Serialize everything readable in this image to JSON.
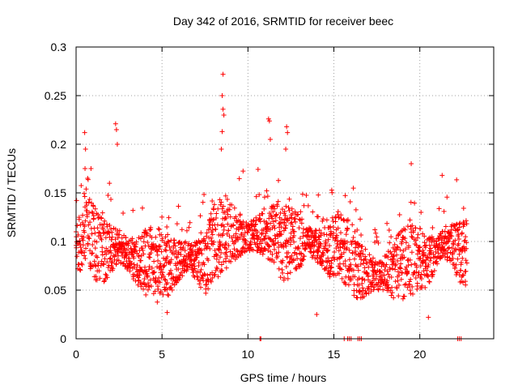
{
  "chart_data": {
    "type": "scatter",
    "title": "Day 342 of 2016, SRMTID for receiver beec",
    "xlabel": "GPS time / hours",
    "ylabel": "SRMTID / TECUs",
    "xlim": [
      0,
      24.3
    ],
    "ylim": [
      0,
      0.3
    ],
    "xticks": [
      0,
      5,
      10,
      15,
      20
    ],
    "xtick_labels": [
      "0",
      "5",
      "10",
      "15",
      "20"
    ],
    "yticks": [
      0,
      0.05,
      0.1,
      0.15,
      0.2,
      0.25,
      0.3
    ],
    "ytick_labels": [
      "0",
      "0.05",
      "0.1",
      "0.15",
      "0.2",
      "0.25",
      "0.3"
    ],
    "grid": true,
    "marker": "plus",
    "color": "#ff0000",
    "series": [
      {
        "name": "SRMTID",
        "x_range": [
          0.0,
          22.75
        ],
        "sample_interval_hours": 0.0167,
        "baseline_curve": [
          {
            "x": 0.0,
            "y": 0.085
          },
          {
            "x": 0.5,
            "y": 0.12
          },
          {
            "x": 1.0,
            "y": 0.1
          },
          {
            "x": 1.5,
            "y": 0.09
          },
          {
            "x": 2.5,
            "y": 0.095
          },
          {
            "x": 3.5,
            "y": 0.08
          },
          {
            "x": 4.5,
            "y": 0.075
          },
          {
            "x": 5.5,
            "y": 0.075
          },
          {
            "x": 6.5,
            "y": 0.085
          },
          {
            "x": 7.5,
            "y": 0.075
          },
          {
            "x": 8.0,
            "y": 0.1
          },
          {
            "x": 9.0,
            "y": 0.11
          },
          {
            "x": 10.0,
            "y": 0.105
          },
          {
            "x": 11.0,
            "y": 0.11
          },
          {
            "x": 12.0,
            "y": 0.1
          },
          {
            "x": 13.0,
            "y": 0.1
          },
          {
            "x": 14.0,
            "y": 0.095
          },
          {
            "x": 15.0,
            "y": 0.09
          },
          {
            "x": 15.5,
            "y": 0.1
          },
          {
            "x": 16.5,
            "y": 0.07
          },
          {
            "x": 17.5,
            "y": 0.065
          },
          {
            "x": 18.5,
            "y": 0.07
          },
          {
            "x": 19.5,
            "y": 0.085
          },
          {
            "x": 20.5,
            "y": 0.08
          },
          {
            "x": 21.5,
            "y": 0.1
          },
          {
            "x": 22.7,
            "y": 0.085
          }
        ],
        "outliers": [
          {
            "x": 0.5,
            "y": 0.212
          },
          {
            "x": 0.55,
            "y": 0.195
          },
          {
            "x": 2.3,
            "y": 0.221
          },
          {
            "x": 2.35,
            "y": 0.215
          },
          {
            "x": 2.4,
            "y": 0.2
          },
          {
            "x": 8.55,
            "y": 0.272
          },
          {
            "x": 8.5,
            "y": 0.25
          },
          {
            "x": 8.55,
            "y": 0.236
          },
          {
            "x": 8.6,
            "y": 0.23
          },
          {
            "x": 8.5,
            "y": 0.213
          },
          {
            "x": 8.45,
            "y": 0.195
          },
          {
            "x": 11.2,
            "y": 0.226
          },
          {
            "x": 11.25,
            "y": 0.224
          },
          {
            "x": 11.3,
            "y": 0.205
          },
          {
            "x": 12.25,
            "y": 0.218
          },
          {
            "x": 12.3,
            "y": 0.212
          },
          {
            "x": 12.2,
            "y": 0.195
          },
          {
            "x": 19.5,
            "y": 0.18
          },
          {
            "x": 21.3,
            "y": 0.168
          },
          {
            "x": 14.0,
            "y": 0.025
          },
          {
            "x": 20.5,
            "y": 0.022
          },
          {
            "x": 5.3,
            "y": 0.027
          }
        ],
        "zero_values_at_x": [
          10.7,
          10.75,
          15.6,
          15.8,
          15.9,
          16.0,
          16.4,
          16.5,
          16.6,
          22.2,
          22.3,
          22.4
        ]
      }
    ]
  }
}
